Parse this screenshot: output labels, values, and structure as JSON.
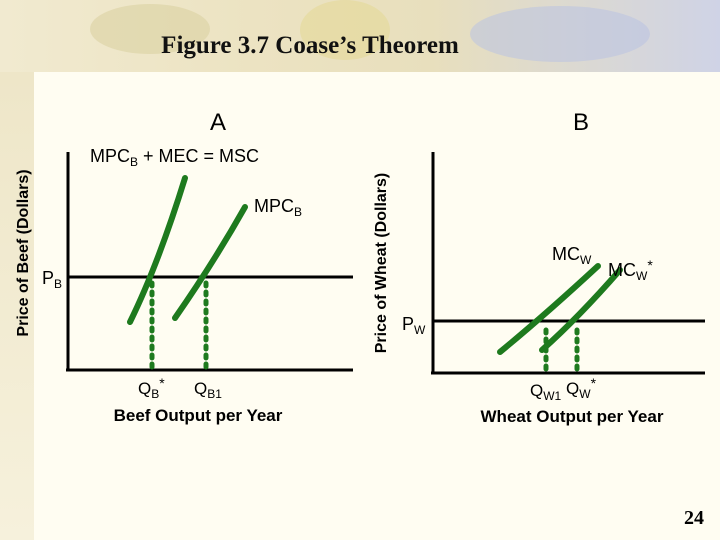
{
  "slide": {
    "title": "Figure 3.7 Coase’s Theorem",
    "page_number": "24"
  },
  "panel_a": {
    "panel_label": "A",
    "y_axis_label": "Price of Beef (Dollars)",
    "x_axis_label": "Beef Output per Year",
    "curve_msc": {
      "base": "MPC",
      "sub": "B",
      "rest": " + MEC = MSC"
    },
    "curve_mpc": {
      "base": "MPC",
      "sub": "B"
    },
    "price": {
      "base": "P",
      "sub": "B"
    },
    "q_star": {
      "base": "Q",
      "sub": "B",
      "sup": "*"
    },
    "q_1": {
      "base": "Q",
      "sub": "B1"
    }
  },
  "panel_b": {
    "panel_label": "B",
    "y_axis_label": "Price of  Wheat (Dollars)",
    "x_axis_label": "Wheat Output per Year",
    "curve_mc": {
      "base": "MC",
      "sub": "W"
    },
    "curve_mc_star": {
      "base": "MC",
      "sub": "W",
      "sup": "*"
    },
    "price": {
      "base": "P",
      "sub": "W"
    },
    "q_1": {
      "base": "Q",
      "sub": "W1"
    },
    "q_star": {
      "base": "Q",
      "sub": "W",
      "sup": "*"
    }
  },
  "colors": {
    "curve": "#1e7a1e",
    "axis": "#000000"
  }
}
